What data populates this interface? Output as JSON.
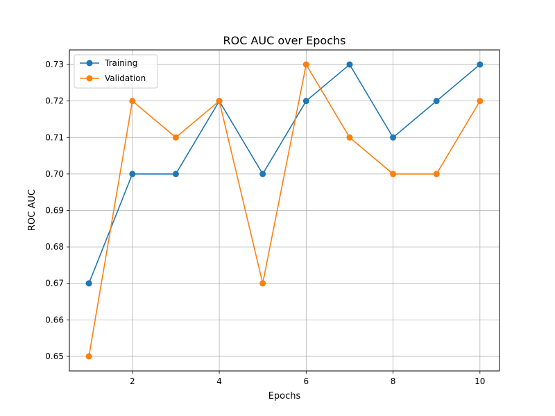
{
  "chart_data": {
    "type": "line",
    "title": "ROC AUC over Epochs",
    "xlabel": "Epochs",
    "ylabel": "ROC AUC",
    "x": [
      1,
      2,
      3,
      4,
      5,
      6,
      7,
      8,
      9,
      10
    ],
    "xlim": [
      0.55,
      10.45
    ],
    "ylim": [
      0.646,
      0.734
    ],
    "xticks": [
      2,
      4,
      6,
      8,
      10
    ],
    "xtick_labels": [
      "2",
      "4",
      "6",
      "8",
      "10"
    ],
    "yticks": [
      0.65,
      0.66,
      0.67,
      0.68,
      0.69,
      0.7,
      0.71,
      0.72,
      0.73
    ],
    "ytick_labels": [
      "0.65",
      "0.66",
      "0.67",
      "0.68",
      "0.69",
      "0.70",
      "0.71",
      "0.72",
      "0.73"
    ],
    "grid": true,
    "legend_position": "top-left",
    "series": [
      {
        "name": "Training",
        "color": "#1f77b4",
        "marker": "circle",
        "values": [
          0.67,
          0.7,
          0.7,
          0.72,
          0.7,
          0.72,
          0.73,
          0.71,
          0.72,
          0.73
        ]
      },
      {
        "name": "Validation",
        "color": "#ff7f0e",
        "marker": "circle",
        "values": [
          0.65,
          0.72,
          0.71,
          0.72,
          0.67,
          0.73,
          0.71,
          0.7,
          0.7,
          0.72
        ]
      }
    ]
  }
}
